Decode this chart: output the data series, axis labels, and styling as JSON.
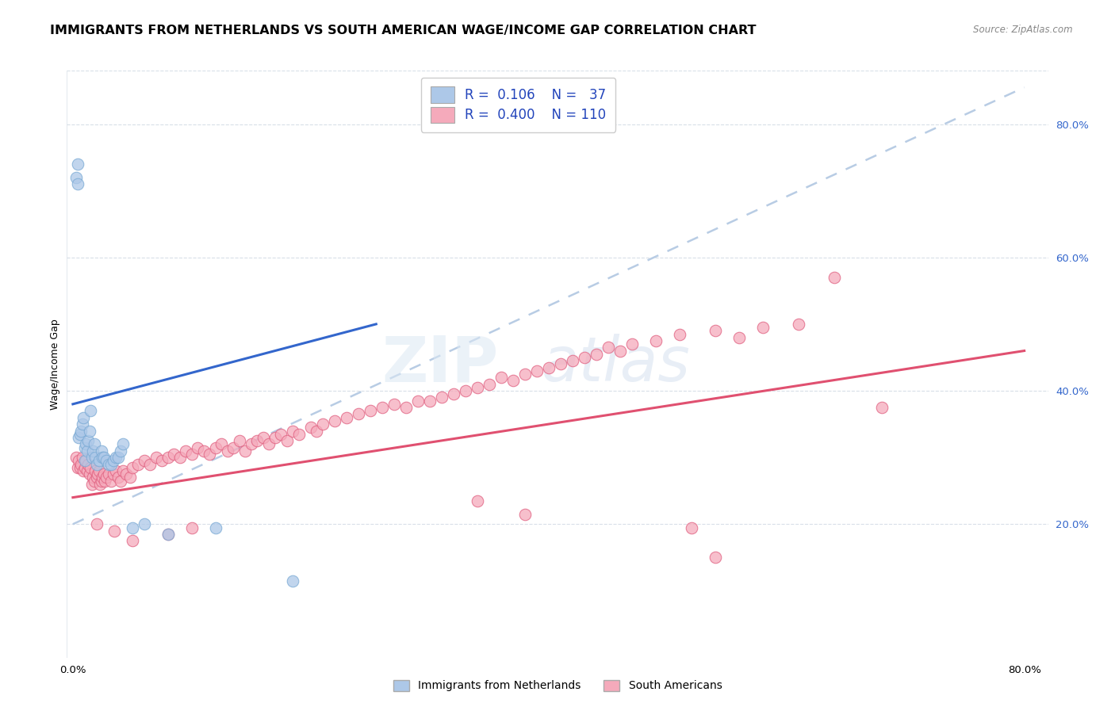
{
  "title": "IMMIGRANTS FROM NETHERLANDS VS SOUTH AMERICAN WAGE/INCOME GAP CORRELATION CHART",
  "source": "Source: ZipAtlas.com",
  "ylabel": "Wage/Income Gap",
  "ytick_labels": [
    "20.0%",
    "40.0%",
    "60.0%",
    "80.0%"
  ],
  "ytick_values": [
    0.2,
    0.4,
    0.6,
    0.8
  ],
  "xlim": [
    -0.005,
    0.82
  ],
  "ylim": [
    0.0,
    0.88
  ],
  "netherlands_color": "#adc8e8",
  "netherlands_edge": "#7aaad4",
  "south_american_color": "#f5aabb",
  "south_american_edge": "#e06080",
  "netherlands_line_color": "#3366cc",
  "south_american_line_color": "#e05070",
  "dashed_line_color": "#b8cce4",
  "background_color": "#ffffff",
  "grid_color": "#d8dfe8",
  "title_fontsize": 11.5,
  "axis_label_fontsize": 9,
  "tick_fontsize": 9.5,
  "legend_fontsize": 12,
  "right_ytick_color": "#3366cc",
  "netherlands_trend_x": [
    0.0,
    0.255
  ],
  "netherlands_trend_y": [
    0.38,
    0.5
  ],
  "south_american_trend_x": [
    0.0,
    0.8
  ],
  "south_american_trend_y": [
    0.24,
    0.46
  ],
  "dashed_trend_x": [
    0.0,
    0.8
  ],
  "dashed_trend_y": [
    0.2,
    0.855
  ],
  "netherlands_x": [
    0.003,
    0.004,
    0.004,
    0.005,
    0.006,
    0.007,
    0.008,
    0.009,
    0.01,
    0.01,
    0.011,
    0.012,
    0.013,
    0.014,
    0.015,
    0.016,
    0.017,
    0.018,
    0.019,
    0.02,
    0.022,
    0.024,
    0.025,
    0.026,
    0.028,
    0.03,
    0.032,
    0.034,
    0.036,
    0.038,
    0.04,
    0.042,
    0.05,
    0.06,
    0.08,
    0.12,
    0.185
  ],
  "netherlands_y": [
    0.72,
    0.74,
    0.71,
    0.33,
    0.335,
    0.34,
    0.35,
    0.36,
    0.315,
    0.295,
    0.32,
    0.31,
    0.325,
    0.34,
    0.37,
    0.3,
    0.31,
    0.32,
    0.3,
    0.29,
    0.295,
    0.31,
    0.3,
    0.3,
    0.295,
    0.29,
    0.29,
    0.295,
    0.3,
    0.3,
    0.31,
    0.32,
    0.195,
    0.2,
    0.185,
    0.195,
    0.115
  ],
  "south_x": [
    0.003,
    0.004,
    0.005,
    0.006,
    0.007,
    0.008,
    0.009,
    0.01,
    0.011,
    0.012,
    0.013,
    0.014,
    0.015,
    0.016,
    0.017,
    0.018,
    0.019,
    0.02,
    0.021,
    0.022,
    0.023,
    0.024,
    0.025,
    0.026,
    0.027,
    0.028,
    0.03,
    0.032,
    0.034,
    0.036,
    0.038,
    0.04,
    0.042,
    0.045,
    0.048,
    0.05,
    0.055,
    0.06,
    0.065,
    0.07,
    0.075,
    0.08,
    0.085,
    0.09,
    0.095,
    0.1,
    0.105,
    0.11,
    0.115,
    0.12,
    0.125,
    0.13,
    0.135,
    0.14,
    0.145,
    0.15,
    0.155,
    0.16,
    0.165,
    0.17,
    0.175,
    0.18,
    0.185,
    0.19,
    0.2,
    0.205,
    0.21,
    0.22,
    0.23,
    0.24,
    0.25,
    0.26,
    0.27,
    0.28,
    0.29,
    0.3,
    0.31,
    0.32,
    0.33,
    0.34,
    0.35,
    0.36,
    0.37,
    0.38,
    0.39,
    0.4,
    0.41,
    0.42,
    0.43,
    0.44,
    0.45,
    0.46,
    0.47,
    0.49,
    0.51,
    0.54,
    0.56,
    0.58,
    0.61,
    0.64,
    0.02,
    0.035,
    0.05,
    0.08,
    0.1,
    0.34,
    0.38,
    0.52,
    0.54,
    0.68
  ],
  "south_y": [
    0.3,
    0.285,
    0.295,
    0.285,
    0.29,
    0.3,
    0.28,
    0.285,
    0.295,
    0.28,
    0.29,
    0.275,
    0.285,
    0.26,
    0.27,
    0.265,
    0.28,
    0.27,
    0.275,
    0.28,
    0.26,
    0.265,
    0.27,
    0.275,
    0.265,
    0.27,
    0.275,
    0.265,
    0.275,
    0.28,
    0.27,
    0.265,
    0.28,
    0.275,
    0.27,
    0.285,
    0.29,
    0.295,
    0.29,
    0.3,
    0.295,
    0.3,
    0.305,
    0.3,
    0.31,
    0.305,
    0.315,
    0.31,
    0.305,
    0.315,
    0.32,
    0.31,
    0.315,
    0.325,
    0.31,
    0.32,
    0.325,
    0.33,
    0.32,
    0.33,
    0.335,
    0.325,
    0.34,
    0.335,
    0.345,
    0.34,
    0.35,
    0.355,
    0.36,
    0.365,
    0.37,
    0.375,
    0.38,
    0.375,
    0.385,
    0.385,
    0.39,
    0.395,
    0.4,
    0.405,
    0.41,
    0.42,
    0.415,
    0.425,
    0.43,
    0.435,
    0.44,
    0.445,
    0.45,
    0.455,
    0.465,
    0.46,
    0.47,
    0.475,
    0.485,
    0.49,
    0.48,
    0.495,
    0.5,
    0.57,
    0.2,
    0.19,
    0.175,
    0.185,
    0.195,
    0.235,
    0.215,
    0.195,
    0.15,
    0.375
  ]
}
